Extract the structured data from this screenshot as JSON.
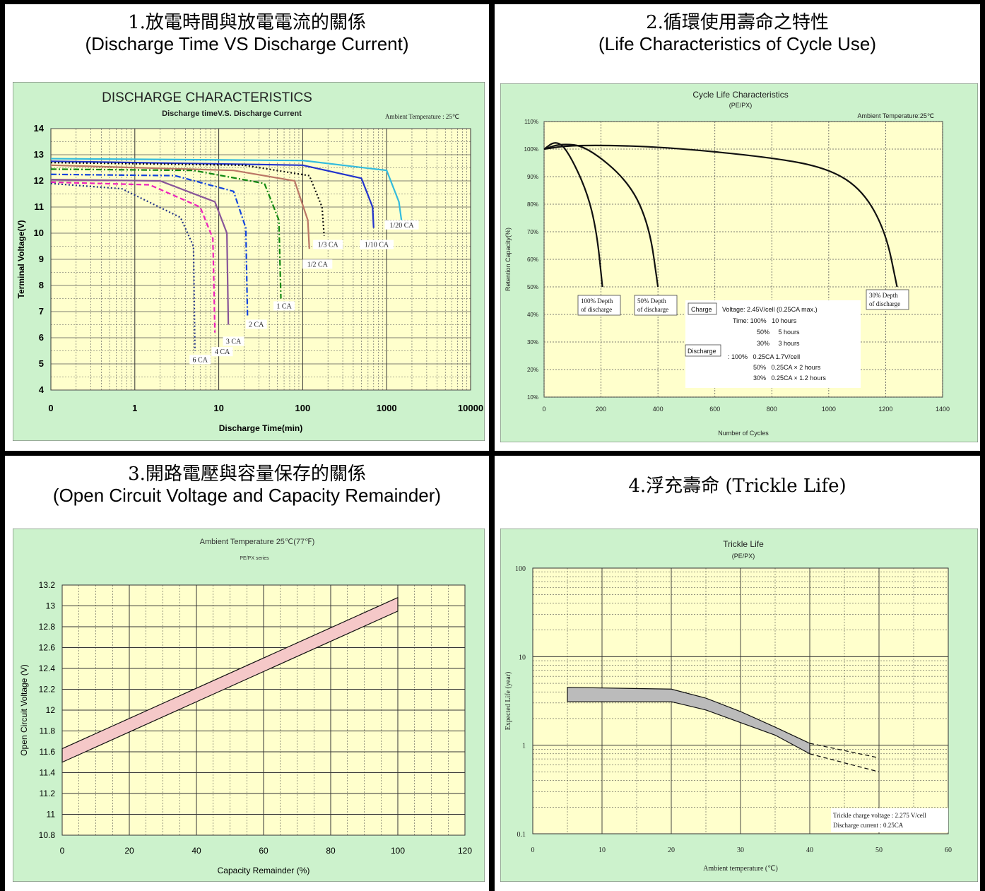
{
  "panels": [
    {
      "title_l1": "1.放電時間與放電電流的關係",
      "title_l2": "(Discharge Time VS Discharge Current)"
    },
    {
      "title_l1": "2.循環使用壽命之特性",
      "title_l2": "(Life Characteristics of Cycle Use)"
    },
    {
      "title_l1": "3.開路電壓與容量保存的關係",
      "title_l2": "(Open Circuit Voltage and Capacity Remainder)"
    },
    {
      "title_l1": "4.浮充壽命 (Trickle Life)",
      "title_l2": ""
    }
  ],
  "colors": {
    "frame_green": "#CCF2CC",
    "plot_yellow": "#FFFFCC",
    "band_pink": "#F5C8C8",
    "grid": "#333333"
  },
  "chart_data": [
    {
      "type": "line",
      "title": "DISCHARGE CHARACTERISTICS",
      "subtitle": "Discharge timeV.S. Discharge Current",
      "annotation": "Ambient Temperature : 25℃",
      "xlabel": "Discharge Time(min)",
      "ylabel": "Terminal Voltage(V)",
      "x_scale": "log",
      "xlim": [
        0.1,
        10000
      ],
      "ylim": [
        4,
        14
      ],
      "x_ticks": [
        "0",
        "1",
        "10",
        "100",
        "1000",
        "10000"
      ],
      "y_ticks": [
        "4",
        "5",
        "6",
        "7",
        "8",
        "9",
        "10",
        "11",
        "12",
        "13",
        "14"
      ],
      "grid": true,
      "series": [
        {
          "name": "1/20 CA",
          "color": "#33BBDD",
          "dash": "solid",
          "x": [
            0.1,
            100,
            1000,
            1400,
            1500
          ],
          "y": [
            12.85,
            12.78,
            12.4,
            11.2,
            10.5
          ]
        },
        {
          "name": "1/10 CA",
          "color": "#2233CC",
          "dash": "solid",
          "x": [
            0.1,
            100,
            500,
            680,
            700
          ],
          "y": [
            12.75,
            12.6,
            12.1,
            11.0,
            10.2
          ]
        },
        {
          "name": "1/3 CA",
          "color": "#111111",
          "dash": "dot",
          "x": [
            0.1,
            20,
            120,
            170,
            180
          ],
          "y": [
            12.7,
            12.6,
            12.2,
            11.0,
            9.9
          ]
        },
        {
          "name": "1/2 CA",
          "color": "#BB7766",
          "dash": "solid",
          "x": [
            0.1,
            15,
            80,
            115,
            120
          ],
          "y": [
            12.6,
            12.4,
            12.0,
            10.5,
            9.4
          ]
        },
        {
          "name": "1 CA",
          "color": "#118811",
          "dash": "dashdot",
          "x": [
            0.1,
            5,
            35,
            52,
            55
          ],
          "y": [
            12.45,
            12.4,
            11.9,
            10.5,
            7.5
          ]
        },
        {
          "name": "2 CA",
          "color": "#1144DD",
          "dash": "dashdot",
          "x": [
            0.1,
            3,
            15,
            21,
            22
          ],
          "y": [
            12.25,
            12.2,
            11.6,
            10.2,
            6.8
          ]
        },
        {
          "name": "3 CA",
          "color": "#885599",
          "dash": "solid",
          "x": [
            0.1,
            2,
            9,
            12.5,
            13
          ],
          "y": [
            12.05,
            12.0,
            11.2,
            10.0,
            6.5
          ]
        },
        {
          "name": "4 CA",
          "color": "#EE22BB",
          "dash": "dash",
          "x": [
            0.1,
            1.5,
            6,
            8.5,
            9
          ],
          "y": [
            11.95,
            11.85,
            11.0,
            9.8,
            6.2
          ]
        },
        {
          "name": "6 CA",
          "color": "#223388",
          "dash": "dot",
          "x": [
            0.1,
            0.7,
            3.5,
            5.0,
            5.2
          ],
          "y": [
            11.9,
            11.7,
            10.6,
            9.5,
            5.5
          ]
        }
      ]
    },
    {
      "type": "line",
      "title": "Cycle Life Characteristics",
      "subtitle": "(PE/PX)",
      "annotation": "Ambient Temperature:25℃",
      "xlabel": "Number of Cycles",
      "ylabel": "Retention Capacity(%)",
      "xlim": [
        0,
        1400
      ],
      "ylim": [
        10,
        110
      ],
      "x_ticks": [
        "0",
        "200",
        "400",
        "600",
        "800",
        "1000",
        "1200",
        "1400"
      ],
      "y_ticks": [
        "10%",
        "20%",
        "30%",
        "40%",
        "50%",
        "60%",
        "70%",
        "80%",
        "90%",
        "100%",
        "110%"
      ],
      "grid": true,
      "series": [
        {
          "name": "100% Depth of discharge",
          "x": [
            0,
            40,
            80,
            150,
            185,
            205
          ],
          "y": [
            100,
            103,
            100,
            85,
            70,
            50
          ]
        },
        {
          "name": "50% Depth of discharge",
          "x": [
            0,
            60,
            150,
            300,
            370,
            400
          ],
          "y": [
            100,
            102,
            101,
            88,
            72,
            50
          ]
        },
        {
          "name": "30% Depth of discharge",
          "x": [
            0,
            100,
            400,
            800,
            1000,
            1120,
            1200,
            1240
          ],
          "y": [
            100,
            101.5,
            101,
            97,
            93,
            85,
            70,
            50
          ]
        }
      ],
      "info_box": {
        "charge_label": "Charge",
        "discharge_label": "Discharge",
        "lines": [
          "Voltage: 2.45V/cell (0.25CA max.)",
          "Time: 100%   10 hours",
          "50%     5 hours",
          "30%     3 hours",
          ": 100%   0.25CA 1.7V/cell",
          "50%   0.25CA × 2 hours",
          "30%   0.25CA × 1.2 hours"
        ]
      }
    },
    {
      "type": "area",
      "title": "Ambient Temperature 25℃(77℉)",
      "subtitle": "PE/PX series",
      "xlabel": "Capacity Remainder (%)",
      "ylabel": "Open Circuit Voltage (V)",
      "xlim": [
        0,
        120
      ],
      "ylim": [
        10.8,
        13.2
      ],
      "x_ticks": [
        "0",
        "20",
        "40",
        "60",
        "80",
        "100",
        "120"
      ],
      "y_ticks": [
        "10.8",
        "11",
        "11.2",
        "11.4",
        "11.6",
        "11.8",
        "12",
        "12.2",
        "12.4",
        "12.6",
        "12.8",
        "13",
        "13.2"
      ],
      "grid": true,
      "band": {
        "x": [
          0,
          100
        ],
        "upper": [
          11.63,
          13.08
        ],
        "lower": [
          11.5,
          12.95
        ]
      }
    },
    {
      "type": "area",
      "title": "Trickle Life",
      "subtitle": "(PE/PX)",
      "xlabel": "Ambient temperature (℃)",
      "ylabel": "Expected Life (year)",
      "y_scale": "log",
      "xlim": [
        0,
        60
      ],
      "ylim": [
        0.1,
        100
      ],
      "x_ticks": [
        "0",
        "10",
        "20",
        "30",
        "40",
        "50",
        "60"
      ],
      "y_ticks": [
        "0.1",
        "1",
        "10",
        "100"
      ],
      "grid": true,
      "band": {
        "x": [
          5,
          20,
          25,
          30,
          35,
          40
        ],
        "upper": [
          4.5,
          4.3,
          3.4,
          2.4,
          1.6,
          1.05
        ],
        "lower": [
          3.1,
          3.1,
          2.5,
          1.8,
          1.3,
          0.8
        ]
      },
      "dashed_extension": {
        "x": [
          40,
          50
        ],
        "upper": [
          1.05,
          0.72
        ],
        "lower": [
          0.8,
          0.5
        ]
      },
      "note": [
        "Trickle charge voltage : 2.275 V/cell",
        "Discharge current : 0.25CA"
      ]
    }
  ]
}
